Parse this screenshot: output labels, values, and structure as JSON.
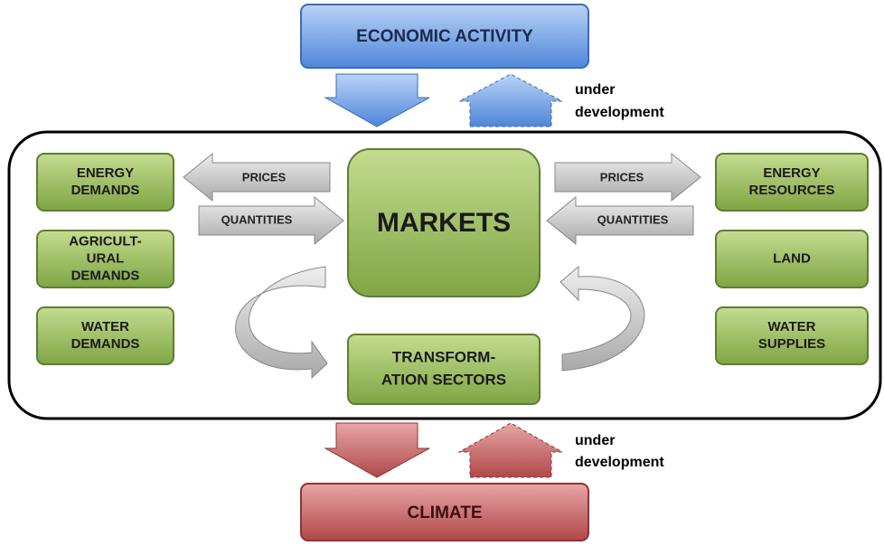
{
  "top": {
    "label": "ECONOMIC ACTIVITY",
    "note": [
      "under",
      "development"
    ]
  },
  "center": {
    "label": "MARKETS"
  },
  "left_nodes": [
    [
      "ENERGY",
      "DEMANDS"
    ],
    [
      "AGRICULT-",
      "URAL",
      "DEMANDS"
    ],
    [
      "WATER",
      "DEMANDS"
    ]
  ],
  "right_nodes": [
    [
      "ENERGY",
      "RESOURCES"
    ],
    [
      "LAND"
    ],
    [
      "WATER",
      "SUPPLIES"
    ]
  ],
  "left_arrows": {
    "prices": "PRICES",
    "quantities": "QUANTITIES"
  },
  "right_arrows": {
    "prices": "PRICES",
    "quantities": "QUANTITIES"
  },
  "transformation": {
    "label": [
      "TRANSFORM-",
      "ATION SECTORS"
    ]
  },
  "bottom": {
    "label": "CLIMATE",
    "note": [
      "under",
      "development"
    ]
  }
}
